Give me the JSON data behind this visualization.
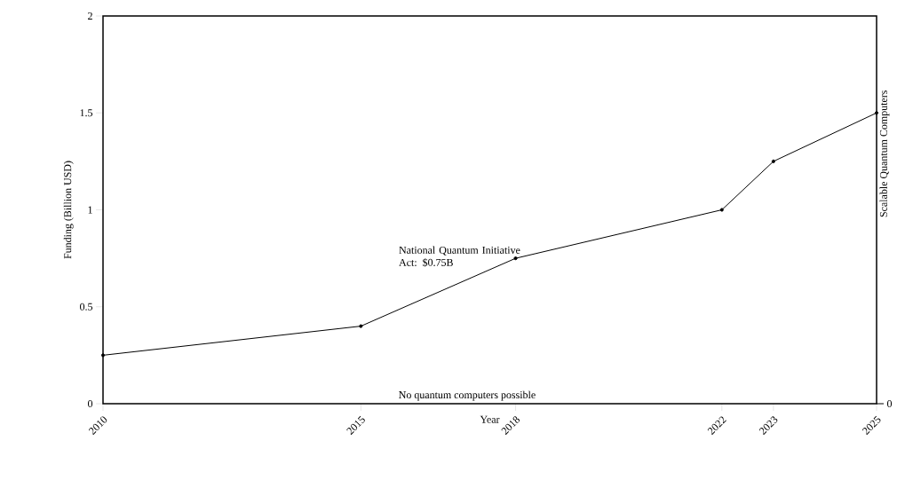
{
  "chart_data": {
    "type": "line",
    "xlabel": "Year",
    "ylabel": "Funding (Billion USD)",
    "x": [
      2010,
      2015,
      2018,
      2022,
      2023,
      2025
    ],
    "series": [
      {
        "color": "#000000",
        "values": [
          0.25,
          0.4,
          0.75,
          1.0,
          1.25,
          1.5
        ]
      }
    ],
    "xlim": [
      2010,
      2025
    ],
    "xticks": [
      2010,
      2015,
      2018,
      2022,
      2023,
      2025
    ],
    "ylim": [
      0,
      2
    ],
    "yticks": [
      0,
      0.5,
      1,
      1.5,
      2
    ],
    "marker": "circle",
    "line_style": "solid",
    "grid": false,
    "annotations": [
      {
        "text": "National Quantum Initiative Act: $0.75B",
        "x": 2018,
        "y": 0.75
      },
      "No quantum computers possible",
      "Scalable Quantum Computers",
      "0"
    ]
  }
}
